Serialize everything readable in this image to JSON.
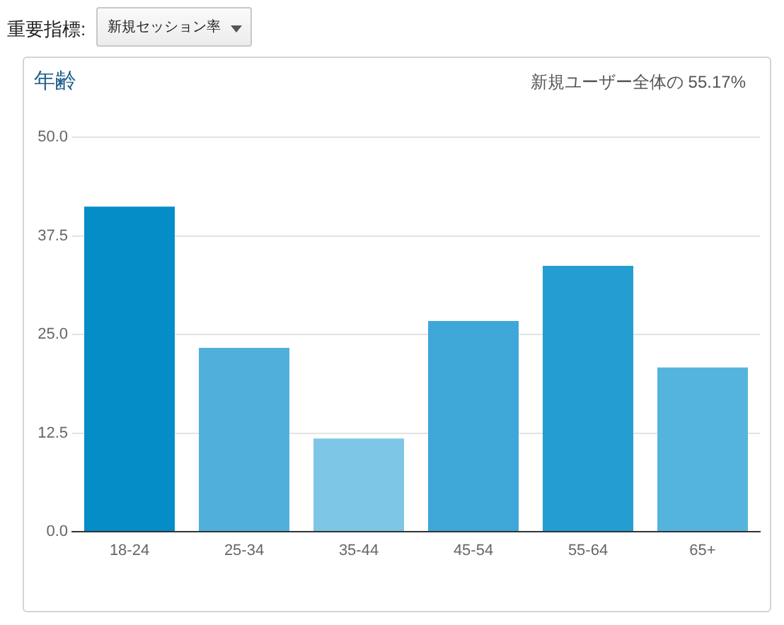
{
  "chart_data": {
    "type": "bar",
    "title": "年齢",
    "subtitle": "新規ユーザー全体の 55.17%",
    "annotations": [
      "重要指標:",
      "新規セッション率"
    ],
    "categories": [
      "18-24",
      "25-34",
      "35-44",
      "45-54",
      "55-64",
      "65+"
    ],
    "values": [
      41.2,
      23.3,
      11.8,
      26.7,
      33.7,
      20.8
    ],
    "colors": [
      "#058dc7",
      "#50b0db",
      "#7ec6e5",
      "#3fa7d8",
      "#249ed2",
      "#55b4dd"
    ],
    "ylim": [
      0,
      50
    ],
    "yticks": [
      {
        "value": 0,
        "label": "0.0"
      },
      12.5,
      {
        "value": 25,
        "label": "25.0"
      },
      37.5,
      {
        "value": 50,
        "label": "50.0"
      }
    ],
    "grid": "y"
  }
}
